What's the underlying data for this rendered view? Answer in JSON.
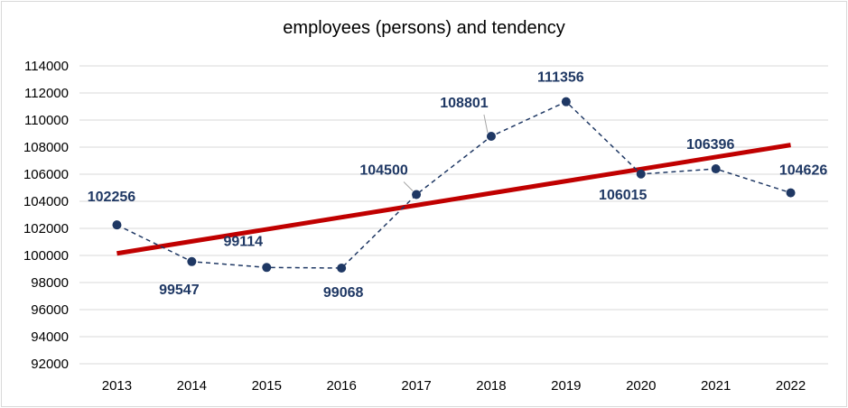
{
  "chart_data": {
    "type": "line",
    "title": "employees (persons) and tendency",
    "xlabel": "",
    "ylabel": "",
    "categories": [
      "2013",
      "2014",
      "2015",
      "2016",
      "2017",
      "2018",
      "2019",
      "2020",
      "2021",
      "2022"
    ],
    "series": [
      {
        "values": [
          102256,
          99547,
          99114,
          99068,
          104500,
          108801,
          111356,
          106015,
          106396,
          104626
        ],
        "color": "#1f3864",
        "style": "dashed",
        "markers": true,
        "data_labels": true
      },
      {
        "type": "trendline",
        "values": [
          100150,
          101040,
          101930,
          102820,
          103710,
          104600,
          105490,
          106380,
          107270,
          108160
        ],
        "color": "#c00000",
        "style": "solid"
      }
    ],
    "ylim": [
      92000,
      114000
    ],
    "yticks": [
      92000,
      94000,
      96000,
      98000,
      100000,
      102000,
      104000,
      106000,
      108000,
      110000,
      112000,
      114000
    ],
    "grid": true,
    "legend": "none",
    "colors": {
      "series": "#1f3864",
      "trend": "#c00000",
      "grid": "#d9d9d9",
      "label": "#1f3864"
    }
  }
}
